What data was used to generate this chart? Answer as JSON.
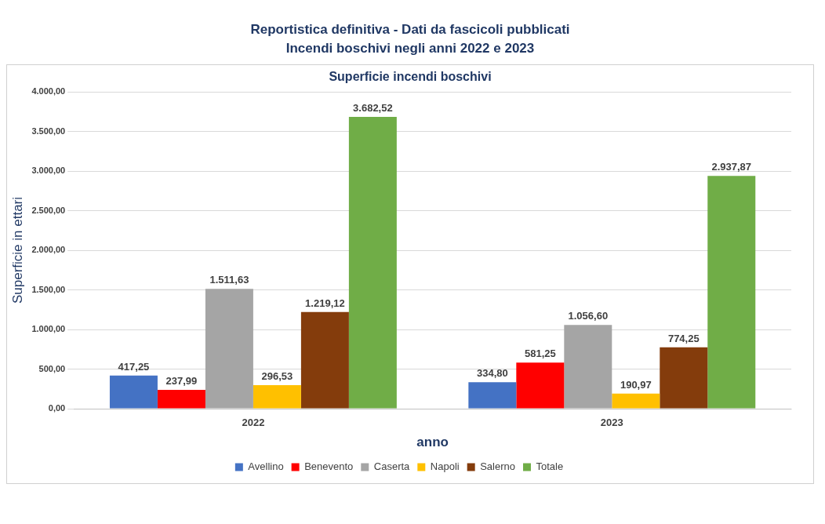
{
  "chart_data": {
    "type": "bar",
    "title": "Reportistica definitiva - Dati da fascicoli pubblicati",
    "subtitle": "Incendi boschivi negli anni 2022 e 2023",
    "annotations": [
      "Superficie incendi boschivi"
    ],
    "xlabel": "anno",
    "ylabel": "Superficie in ettari",
    "categories": [
      "2022",
      "2023"
    ],
    "series": [
      {
        "name": "Avellino",
        "color": "#4472c4",
        "values": [
          417.25,
          334.8
        ],
        "value_labels": [
          "417,25",
          "334,80"
        ]
      },
      {
        "name": "Benevento",
        "color": "#ff0000",
        "values": [
          237.99,
          581.25
        ],
        "value_labels": [
          "237,99",
          "581,25"
        ]
      },
      {
        "name": "Caserta",
        "color": "#a5a5a5",
        "values": [
          1511.63,
          1056.6
        ],
        "value_labels": [
          "1.511,63",
          "1.056,60"
        ]
      },
      {
        "name": "Napoli",
        "color": "#ffc000",
        "values": [
          296.53,
          190.97
        ],
        "value_labels": [
          "296,53",
          "190,97"
        ]
      },
      {
        "name": "Salerno",
        "color": "#843c0c",
        "values": [
          1219.12,
          774.25
        ],
        "value_labels": [
          "1.219,12",
          "774,25"
        ]
      },
      {
        "name": "Totale",
        "color": "#70ad47",
        "values": [
          3682.52,
          2937.87
        ],
        "value_labels": [
          "3.682,52",
          "2.937,87"
        ]
      }
    ],
    "ylim": [
      0,
      4000
    ],
    "yticks": [
      {
        "value": 0,
        "label": "0,00"
      },
      {
        "value": 500,
        "label": "500,00"
      },
      {
        "value": 1000,
        "label": "1.000,00"
      },
      {
        "value": 1500,
        "label": "1.500,00"
      },
      {
        "value": 2000,
        "label": "2.000,00"
      },
      {
        "value": 2500,
        "label": "2.500,00"
      },
      {
        "value": 3000,
        "label": "3.000,00"
      },
      {
        "value": 3500,
        "label": "3.500,00"
      },
      {
        "value": 4000,
        "label": "4.000,00"
      }
    ],
    "grid": "y",
    "legend": "bottom"
  }
}
